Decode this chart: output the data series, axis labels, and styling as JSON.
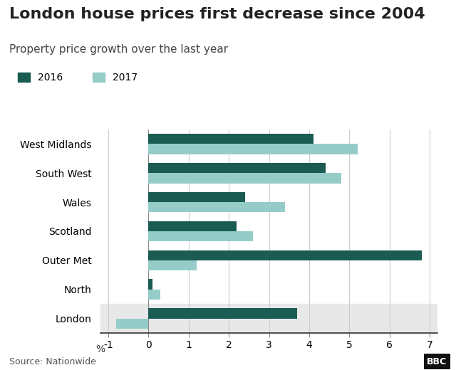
{
  "title": "London house prices first decrease since 2004",
  "subtitle": "Property price growth over the last year",
  "source": "Source: Nationwide",
  "categories": [
    "West Midlands",
    "South West",
    "Wales",
    "Scotland",
    "Outer Met",
    "North",
    "London"
  ],
  "values_2016": [
    4.1,
    4.4,
    2.4,
    2.2,
    6.8,
    0.1,
    3.7
  ],
  "values_2017": [
    5.2,
    4.8,
    3.4,
    2.6,
    1.2,
    0.3,
    -0.8
  ],
  "color_2016": "#1a5c52",
  "color_2017": "#96ccc8",
  "highlight_bg": "#e8e8e8",
  "highlight_region": "London",
  "xlim": [
    -1.2,
    7.2
  ],
  "xticks": [
    -1,
    0,
    1,
    2,
    3,
    4,
    5,
    6,
    7
  ],
  "xlabel": "%",
  "bar_height": 0.35,
  "legend_2016": "2016",
  "legend_2017": "2017",
  "title_fontsize": 16,
  "subtitle_fontsize": 11,
  "tick_fontsize": 10,
  "source_fontsize": 9
}
